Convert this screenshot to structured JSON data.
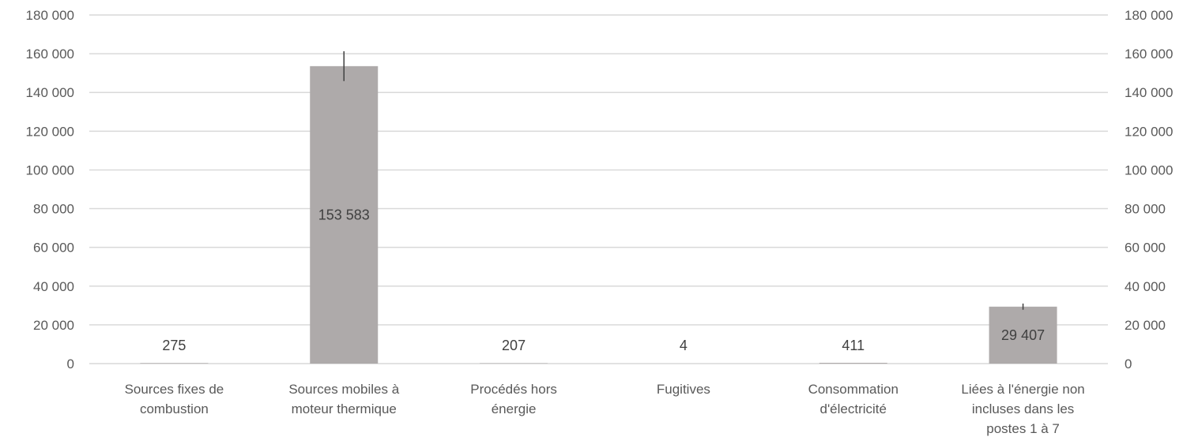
{
  "chart_data": {
    "type": "bar",
    "categories": [
      [
        "Sources fixes de",
        "combustion"
      ],
      [
        "Sources mobiles à",
        "moteur thermique"
      ],
      [
        "Procédés hors",
        "énergie"
      ],
      [
        "Fugitives"
      ],
      [
        "Consommation",
        "d'électricité"
      ],
      [
        "Liées à l'énergie non",
        "incluses dans les",
        "postes 1 à 7"
      ]
    ],
    "values": [
      275,
      153583,
      207,
      4,
      411,
      29407
    ],
    "data_labels": [
      "275",
      "153 583",
      "207",
      "4",
      "411",
      "29 407"
    ],
    "error_bars": [
      0,
      7700,
      0,
      0,
      0,
      1600
    ],
    "ylim": [
      0,
      180000
    ],
    "yticks": [
      {
        "value": 0,
        "label": "0"
      },
      {
        "value": 20000,
        "label": "20 000"
      },
      {
        "value": 40000,
        "label": "40 000"
      },
      {
        "value": 60000,
        "label": "60 000"
      },
      {
        "value": 80000,
        "label": "80 000"
      },
      {
        "value": 100000,
        "label": "100 000"
      },
      {
        "value": 120000,
        "label": "120 000"
      },
      {
        "value": 140000,
        "label": "140 000"
      },
      {
        "value": 160000,
        "label": "160 000"
      },
      {
        "value": 180000,
        "label": "180 000"
      }
    ],
    "secondary_axis": true,
    "grid": true,
    "title": "",
    "xlabel": "",
    "ylabel": "",
    "colors": {
      "bar": "#aeaaaa",
      "grid": "#d9d9d9",
      "text": "#595959",
      "error_bar": "#404040"
    }
  }
}
